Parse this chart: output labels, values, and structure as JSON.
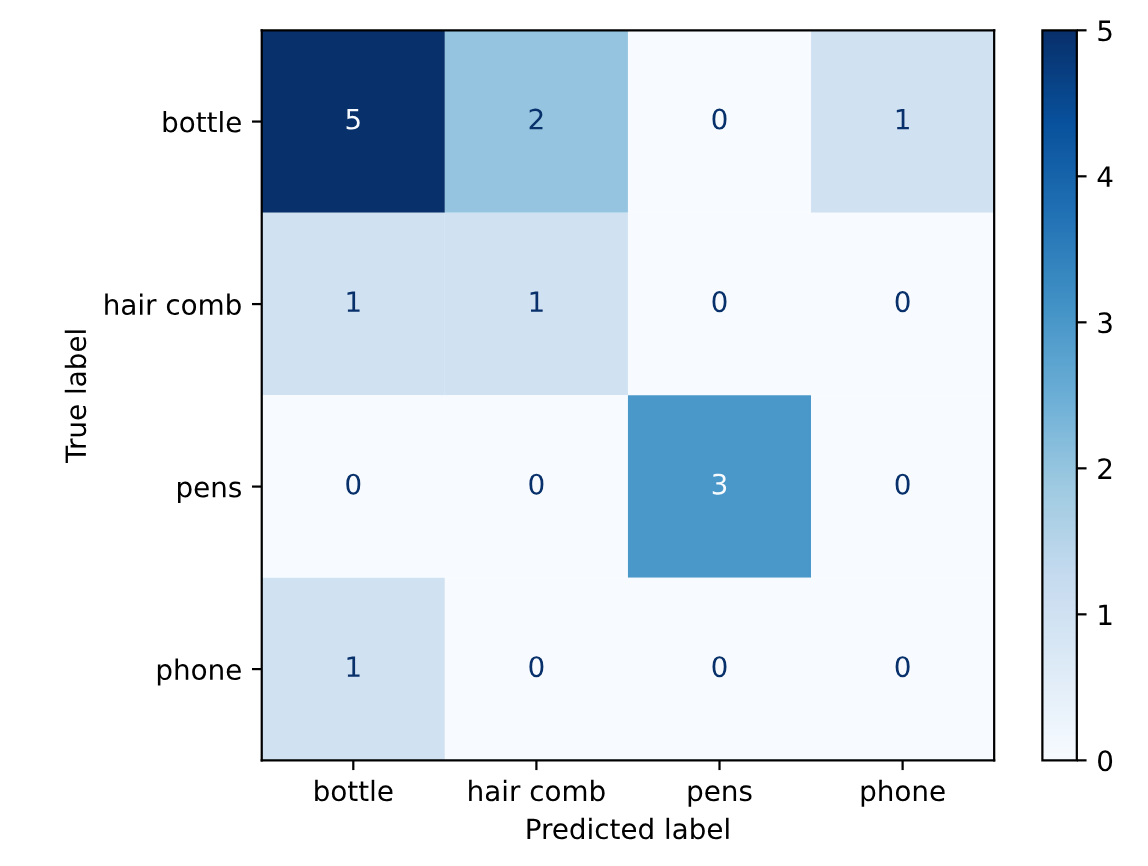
{
  "chart_data": {
    "type": "heatmap",
    "xlabel": "Predicted label",
    "ylabel": "True label",
    "categories": [
      "bottle",
      "hair comb",
      "pens",
      "phone"
    ],
    "y_categories": [
      "bottle",
      "hair comb",
      "pens",
      "phone"
    ],
    "cells": [
      [
        5,
        2,
        0,
        1
      ],
      [
        1,
        1,
        0,
        0
      ],
      [
        0,
        0,
        3,
        0
      ],
      [
        1,
        0,
        0,
        0
      ]
    ],
    "clim": [
      0,
      5
    ],
    "cticks": [
      0,
      1,
      2,
      3,
      4,
      5
    ],
    "data_labels": true,
    "grid": false
  }
}
